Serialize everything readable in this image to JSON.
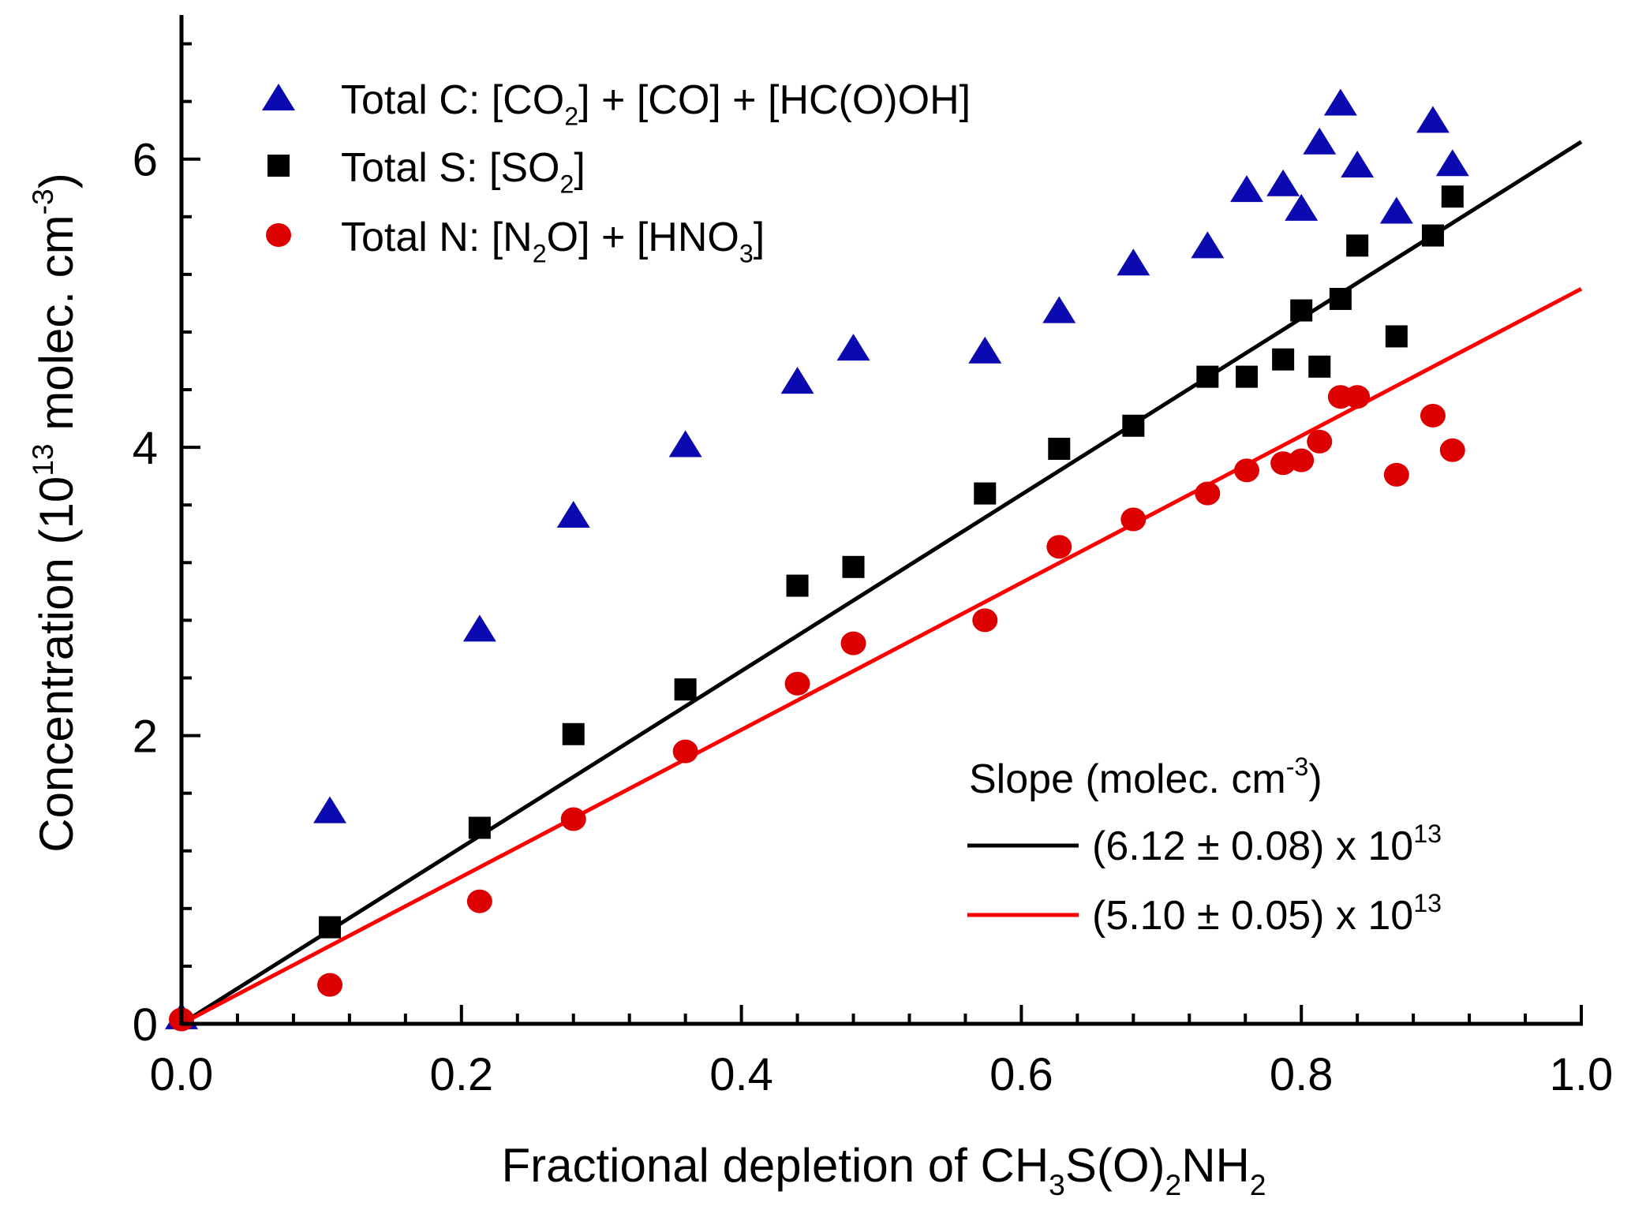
{
  "chart_data": {
    "type": "scatter",
    "xlabel_parts": [
      {
        "t": "Fractional depletion of CH"
      },
      {
        "sub": "3"
      },
      {
        "t": "S(O)"
      },
      {
        "sub": "2"
      },
      {
        "t": "NH"
      },
      {
        "sub": "2"
      }
    ],
    "ylabel_parts": [
      {
        "t": "Concentration (10"
      },
      {
        "sup": "13"
      },
      {
        "t": " molec. cm"
      },
      {
        "sup": "-3"
      },
      {
        "t": ")"
      }
    ],
    "xlim": [
      0,
      1.0
    ],
    "ylim": [
      0,
      7
    ],
    "x_ticks": [
      "0.0",
      "0.2",
      "0.4",
      "0.6",
      "0.8",
      "1.0"
    ],
    "x_tick_values": [
      0,
      0.2,
      0.4,
      0.6,
      0.8,
      1.0
    ],
    "y_ticks": [
      "0",
      "2",
      "4",
      "6"
    ],
    "y_tick_values": [
      0,
      2,
      4,
      6
    ],
    "grid": false,
    "legend_position": "top-left",
    "series": [
      {
        "name": "Total C",
        "marker": "triangle",
        "color": "#0a0ab0",
        "label_parts": [
          {
            "t": "Total C: [CO"
          },
          {
            "sub": "2"
          },
          {
            "t": "] + [CO] + [HC(O)OH]"
          }
        ],
        "x": [
          0,
          0.106,
          0.213,
          0.28,
          0.36,
          0.44,
          0.48,
          0.574,
          0.627,
          0.68,
          0.733,
          0.761,
          0.787,
          0.8,
          0.813,
          0.828,
          0.84,
          0.868,
          0.894,
          0.908
        ],
        "y": [
          0.05,
          1.48,
          2.74,
          3.53,
          4.02,
          4.46,
          4.69,
          4.67,
          4.95,
          5.28,
          5.4,
          5.79,
          5.83,
          5.66,
          6.12,
          6.39,
          5.96,
          5.64,
          6.27,
          5.97
        ]
      },
      {
        "name": "Total S",
        "marker": "square",
        "color": "#000000",
        "label_parts": [
          {
            "t": "Total S: [SO"
          },
          {
            "sub": "2"
          },
          {
            "t": "]"
          }
        ],
        "x": [
          0.106,
          0.213,
          0.28,
          0.36,
          0.44,
          0.48,
          0.574,
          0.627,
          0.68,
          0.733,
          0.761,
          0.787,
          0.8,
          0.813,
          0.828,
          0.84,
          0.868,
          0.894,
          0.908
        ],
        "y": [
          0.67,
          1.36,
          2.01,
          2.32,
          3.04,
          3.17,
          3.68,
          3.99,
          4.15,
          4.49,
          4.49,
          4.61,
          4.95,
          4.56,
          5.03,
          5.4,
          4.77,
          5.47,
          5.74
        ]
      },
      {
        "name": "Total N",
        "marker": "circle",
        "color": "#dd0000",
        "label_parts": [
          {
            "t": "Total N: [N"
          },
          {
            "sub": "2"
          },
          {
            "t": "O] + [HNO"
          },
          {
            "sub": "3"
          },
          {
            "t": "]"
          }
        ],
        "x": [
          0,
          0.106,
          0.213,
          0.28,
          0.36,
          0.44,
          0.48,
          0.574,
          0.627,
          0.68,
          0.733,
          0.761,
          0.787,
          0.8,
          0.813,
          0.828,
          0.84,
          0.868,
          0.894,
          0.908
        ],
        "y": [
          0.03,
          0.27,
          0.85,
          1.42,
          1.89,
          2.36,
          2.64,
          2.8,
          3.31,
          3.5,
          3.68,
          3.84,
          3.89,
          3.91,
          4.04,
          4.35,
          4.35,
          3.81,
          4.22,
          3.98
        ]
      }
    ],
    "fits": {
      "title_parts": [
        {
          "t": "Slope (molec. cm"
        },
        {
          "sup": "-3"
        },
        {
          "t": ")"
        }
      ],
      "lines": [
        {
          "name": "Total S fit",
          "slope": 6.12,
          "color": "#000000",
          "label_parts": [
            {
              "t": "(6.12 ± 0.08) x 10"
            },
            {
              "sup": "13"
            }
          ]
        },
        {
          "name": "Total N fit",
          "slope": 5.1,
          "color": "#ff0000",
          "label_parts": [
            {
              "t": "(5.10 ± 0.05) x 10"
            },
            {
              "sup": "13"
            }
          ]
        }
      ]
    }
  }
}
